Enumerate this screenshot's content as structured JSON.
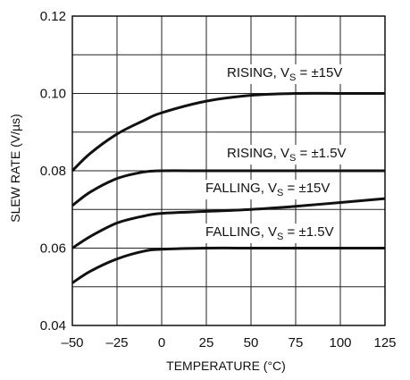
{
  "chart_data": {
    "type": "line",
    "title": "",
    "xlabel": "TEMPERATURE (°C)",
    "ylabel": "SLEW RATE (V/µs)",
    "xlim": [
      -50,
      125
    ],
    "ylim": [
      0.04,
      0.12
    ],
    "x_ticks": [
      -50,
      -25,
      0,
      25,
      50,
      75,
      100,
      125
    ],
    "x_tick_labels": [
      "–50",
      "–25",
      "0",
      "25",
      "50",
      "75",
      "100",
      "125"
    ],
    "y_ticks": [
      0.04,
      0.06,
      0.08,
      0.1,
      0.12
    ],
    "y_tick_labels": [
      "0.04",
      "0.06",
      "0.08",
      "0.10",
      "0.12"
    ],
    "grid": true,
    "series": [
      {
        "name": "RISING, VS = ±15V",
        "label_main": "RISING, V",
        "label_sub": "S",
        "label_tail": " = ±15V",
        "x": [
          -50,
          -40,
          -25,
          -10,
          0,
          25,
          50,
          75,
          100,
          125
        ],
        "values": [
          0.08,
          0.0845,
          0.0895,
          0.093,
          0.095,
          0.098,
          0.0995,
          0.1,
          0.1,
          0.1
        ]
      },
      {
        "name": "RISING, VS = ±1.5V",
        "label_main": "RISING, V",
        "label_sub": "S",
        "label_tail": " = ±1.5V",
        "x": [
          -50,
          -40,
          -25,
          -10,
          0,
          25,
          50,
          75,
          100,
          125
        ],
        "values": [
          0.071,
          0.0745,
          0.078,
          0.0797,
          0.08,
          0.08,
          0.08,
          0.08,
          0.08,
          0.08
        ]
      },
      {
        "name": "FALLING, VS = ±15V",
        "label_main": "FALLING, V",
        "label_sub": "S",
        "label_tail": " = ±15V",
        "x": [
          -50,
          -40,
          -25,
          -10,
          0,
          25,
          50,
          75,
          100,
          125
        ],
        "values": [
          0.06,
          0.063,
          0.0665,
          0.0683,
          0.069,
          0.0695,
          0.07,
          0.0708,
          0.0718,
          0.0728
        ]
      },
      {
        "name": "FALLING, VS = ±1.5V",
        "label_main": "FALLING, V",
        "label_sub": "S",
        "label_tail": " = ±1.5V",
        "x": [
          -50,
          -40,
          -25,
          -10,
          0,
          25,
          50,
          75,
          100,
          125
        ],
        "values": [
          0.051,
          0.054,
          0.0572,
          0.0592,
          0.0597,
          0.06,
          0.06,
          0.06,
          0.06,
          0.06
        ]
      }
    ]
  }
}
